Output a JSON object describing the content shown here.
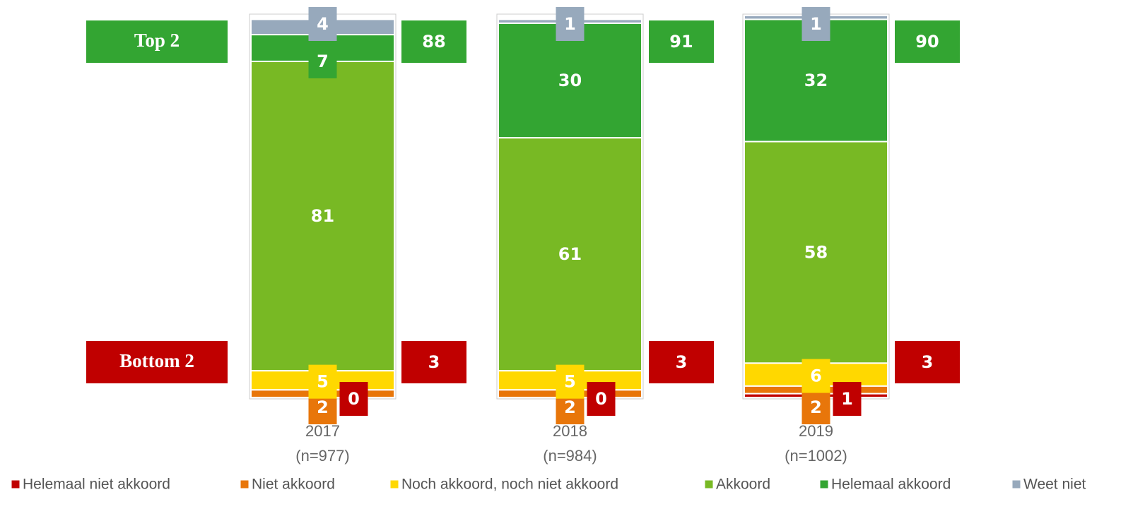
{
  "chart_data": {
    "type": "stacked_bar",
    "categories": [
      "2017",
      "2018",
      "2019"
    ],
    "sample_sizes": [
      "(n=977)",
      "(n=984)",
      "(n=1002)"
    ],
    "ylim": [
      0,
      100
    ],
    "series": [
      {
        "name": "Helemaal niet akkoord",
        "color": "#c00000",
        "values": [
          0,
          0,
          1
        ]
      },
      {
        "name": "Niet akkoord",
        "color": "#e8760a",
        "values": [
          2,
          2,
          2
        ]
      },
      {
        "name": "Noch akkoord, noch niet akkoord",
        "color": "#ffd800",
        "values": [
          5,
          5,
          6
        ]
      },
      {
        "name": "Akkoord",
        "color": "#78b924",
        "values": [
          81,
          61,
          58
        ]
      },
      {
        "name": "Helemaal akkoord",
        "color": "#33a532",
        "values": [
          7,
          30,
          32
        ]
      },
      {
        "name": "Weet niet",
        "color": "#97a9bc",
        "values": [
          4,
          1,
          1
        ]
      }
    ],
    "summaries": [
      {
        "label": "Top 2",
        "color": "#33a532",
        "values": [
          88,
          91,
          90
        ]
      },
      {
        "label": "Bottom 2",
        "color": "#c00000",
        "values": [
          3,
          3,
          3
        ]
      }
    ]
  }
}
